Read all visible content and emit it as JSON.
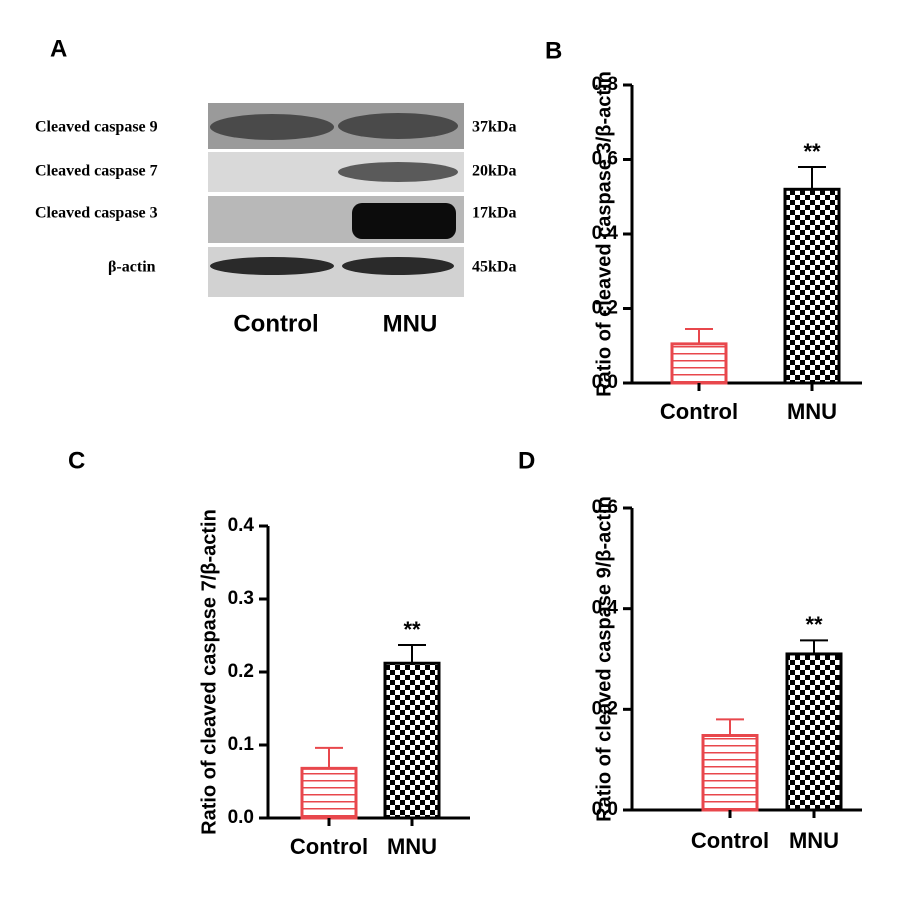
{
  "blot": {
    "panel": "A",
    "rows": [
      {
        "label": "Cleaved caspase 9",
        "size": "37kDa"
      },
      {
        "label": "Cleaved caspase 7",
        "size": "20kDa"
      },
      {
        "label": "Cleaved caspase 3",
        "size": "17kDa"
      },
      {
        "label": "β-actin",
        "size": "45kDa"
      }
    ],
    "lanes": [
      "Control",
      "MNU"
    ]
  },
  "chart_data": [
    {
      "type": "bar",
      "panel": "B",
      "ylabel": "Ratio of cleaved caspase 3/β-actin",
      "categories": [
        "Control",
        "MNU"
      ],
      "values": [
        0.105,
        0.52
      ],
      "errors": [
        0.04,
        0.06
      ],
      "colors": [
        "#e8474c",
        "#000000"
      ],
      "patterns": [
        "horizontal-lines",
        "checker"
      ],
      "annotations": [
        null,
        "**"
      ],
      "ylim": [
        0,
        0.8
      ],
      "yticks": [
        {
          "value": 0,
          "label": "0.0"
        },
        0.2,
        0.4,
        0.6,
        0.8
      ]
    },
    {
      "type": "bar",
      "panel": "C",
      "ylabel": "Ratio of cleaved caspase 7/β-actin",
      "categories": [
        "Control",
        "MNU"
      ],
      "values": [
        0.068,
        0.212
      ],
      "errors": [
        0.028,
        0.025
      ],
      "colors": [
        "#e8474c",
        "#000000"
      ],
      "patterns": [
        "horizontal-lines",
        "checker"
      ],
      "annotations": [
        null,
        "**"
      ],
      "ylim": [
        0,
        0.4
      ],
      "yticks": [
        {
          "value": 0,
          "label": "0.0"
        },
        0.1,
        0.2,
        0.3,
        0.4
      ]
    },
    {
      "type": "bar",
      "panel": "D",
      "ylabel": "Ratio of cleaved caspase 9/β-actin",
      "categories": [
        "Control",
        "MNU"
      ],
      "values": [
        0.148,
        0.31
      ],
      "errors": [
        0.032,
        0.027
      ],
      "colors": [
        "#e8474c",
        "#000000"
      ],
      "patterns": [
        "horizontal-lines",
        "checker"
      ],
      "annotations": [
        null,
        "**"
      ],
      "ylim": [
        0,
        0.6
      ],
      "yticks": [
        {
          "value": 0,
          "label": "0.0"
        },
        0.2,
        0.4,
        0.6
      ]
    }
  ]
}
